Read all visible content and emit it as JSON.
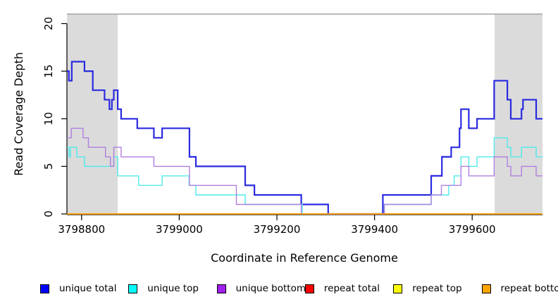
{
  "chart_data": {
    "type": "line",
    "step": true,
    "title": "",
    "xlabel": "Coordinate in Reference Genome",
    "ylabel": "Read Coverage Depth",
    "x_range": [
      3798770,
      3799744
    ],
    "y_range": [
      0,
      21
    ],
    "x_ticks": [
      3798800,
      3799000,
      3799200,
      3799400,
      3799600
    ],
    "y_ticks": [
      0,
      5,
      10,
      15,
      20
    ],
    "grid": false,
    "shaded_x_regions": [
      [
        3798770,
        3798874
      ],
      [
        3799646,
        3799744
      ]
    ],
    "shaded_region_color": "#DBDBDB",
    "top_border_color": "#A3A3A3",
    "legend_position": "bottom",
    "series": [
      {
        "name": "unique total",
        "color": "#2A2AE0",
        "legend_color": "#0000FF",
        "line_width": 2.2,
        "points": [
          [
            3798770,
            15
          ],
          [
            3798774,
            14
          ],
          [
            3798780,
            16
          ],
          [
            3798806,
            15
          ],
          [
            3798823,
            13
          ],
          [
            3798847,
            12
          ],
          [
            3798857,
            11
          ],
          [
            3798862,
            12
          ],
          [
            3798866,
            13
          ],
          [
            3798874,
            11
          ],
          [
            3798881,
            10
          ],
          [
            3798914,
            9
          ],
          [
            3798948,
            8
          ],
          [
            3798965,
            9
          ],
          [
            3799021,
            6
          ],
          [
            3799034,
            5
          ],
          [
            3799135,
            3
          ],
          [
            3799154,
            2
          ],
          [
            3799250,
            1
          ],
          [
            3799305,
            0
          ],
          [
            3799417,
            2
          ],
          [
            3799516,
            4
          ],
          [
            3799538,
            6
          ],
          [
            3799557,
            7
          ],
          [
            3799574,
            9
          ],
          [
            3799577,
            11
          ],
          [
            3799593,
            9
          ],
          [
            3799610,
            10
          ],
          [
            3799645,
            14
          ],
          [
            3799672,
            12
          ],
          [
            3799679,
            10
          ],
          [
            3799701,
            11
          ],
          [
            3799704,
            12
          ],
          [
            3799731,
            10
          ],
          [
            3799744,
            10
          ]
        ]
      },
      {
        "name": "unique top",
        "color": "#4FEAEA",
        "legend_color": "#00FFFF",
        "line_width": 1.4,
        "points": [
          [
            3798770,
            7
          ],
          [
            3798774,
            6
          ],
          [
            3798777,
            7
          ],
          [
            3798790,
            6
          ],
          [
            3798806,
            5
          ],
          [
            3798866,
            6
          ],
          [
            3798874,
            4
          ],
          [
            3798917,
            3
          ],
          [
            3798965,
            4
          ],
          [
            3799020,
            3
          ],
          [
            3799034,
            2
          ],
          [
            3799135,
            1
          ],
          [
            3799252,
            0
          ],
          [
            3799420,
            1
          ],
          [
            3799516,
            2
          ],
          [
            3799552,
            3
          ],
          [
            3799563,
            4
          ],
          [
            3799577,
            6
          ],
          [
            3799593,
            5
          ],
          [
            3799610,
            6
          ],
          [
            3799645,
            8
          ],
          [
            3799672,
            7
          ],
          [
            3799679,
            6
          ],
          [
            3799701,
            7
          ],
          [
            3799731,
            6
          ],
          [
            3799744,
            6
          ]
        ]
      },
      {
        "name": "unique bottom",
        "color": "#B07FE0",
        "legend_color": "#A020F0",
        "line_width": 1.4,
        "points": [
          [
            3798770,
            8
          ],
          [
            3798779,
            9
          ],
          [
            3798803,
            8
          ],
          [
            3798814,
            7
          ],
          [
            3798849,
            6
          ],
          [
            3798859,
            5
          ],
          [
            3798866,
            7
          ],
          [
            3798881,
            6
          ],
          [
            3798948,
            5
          ],
          [
            3799021,
            3
          ],
          [
            3799117,
            1
          ],
          [
            3799250,
            0
          ],
          [
            3799420,
            1
          ],
          [
            3799516,
            2
          ],
          [
            3799537,
            3
          ],
          [
            3799577,
            5
          ],
          [
            3799593,
            4
          ],
          [
            3799645,
            6
          ],
          [
            3799672,
            5
          ],
          [
            3799679,
            4
          ],
          [
            3799701,
            5
          ],
          [
            3799731,
            4
          ],
          [
            3799744,
            4
          ]
        ]
      },
      {
        "name": "repeat total",
        "color": "#EE0000",
        "legend_color": "#FF0000",
        "line_width": 1.4,
        "points": [
          [
            3798770,
            0
          ],
          [
            3799744,
            0
          ]
        ]
      },
      {
        "name": "repeat top",
        "color": "#FFFF00",
        "legend_color": "#FFFF00",
        "line_width": 1.4,
        "points": [
          [
            3798770,
            0
          ],
          [
            3799744,
            0
          ]
        ]
      },
      {
        "name": "repeat bottom",
        "color": "#FF9C00",
        "legend_color": "#FFA500",
        "line_width": 1.6,
        "points": [
          [
            3798770,
            0
          ],
          [
            3799744,
            0
          ]
        ]
      }
    ]
  }
}
